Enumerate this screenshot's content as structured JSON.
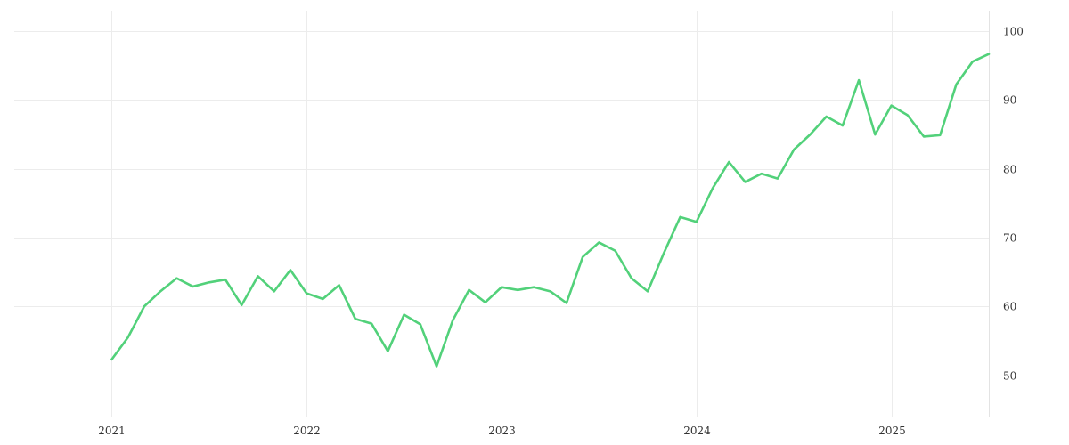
{
  "chart_data": {
    "type": "line",
    "title": "",
    "xlabel": "",
    "ylabel": "",
    "grid": true,
    "y_axis_side": "right",
    "xlim": [
      "2020-07",
      "2025-07"
    ],
    "ylim": [
      44,
      103
    ],
    "x_ticks": [
      "2021",
      "2022",
      "2023",
      "2024",
      "2025"
    ],
    "y_ticks": [
      50,
      60,
      70,
      80,
      90,
      100
    ],
    "series": [
      {
        "color": "#52d17a",
        "x": [
          "2021-01",
          "2021-02",
          "2021-03",
          "2021-04",
          "2021-05",
          "2021-06",
          "2021-07",
          "2021-08",
          "2021-09",
          "2021-10",
          "2021-11",
          "2021-12",
          "2022-01",
          "2022-02",
          "2022-03",
          "2022-04",
          "2022-05",
          "2022-06",
          "2022-07",
          "2022-08",
          "2022-09",
          "2022-10",
          "2022-11",
          "2022-12",
          "2023-01",
          "2023-02",
          "2023-03",
          "2023-04",
          "2023-05",
          "2023-06",
          "2023-07",
          "2023-08",
          "2023-09",
          "2023-10",
          "2023-11",
          "2023-12",
          "2024-01",
          "2024-02",
          "2024-03",
          "2024-04",
          "2024-05",
          "2024-06",
          "2024-07",
          "2024-08",
          "2024-09",
          "2024-10",
          "2024-11",
          "2024-12",
          "2025-01",
          "2025-02",
          "2025-03",
          "2025-04",
          "2025-05",
          "2025-06",
          "2025-07"
        ],
        "values": [
          52.3,
          55.5,
          60.0,
          62.2,
          64.1,
          62.9,
          63.5,
          63.9,
          60.2,
          64.4,
          62.2,
          65.3,
          61.9,
          61.1,
          63.1,
          58.2,
          57.5,
          53.5,
          58.8,
          57.4,
          51.3,
          58.0,
          62.4,
          60.6,
          62.8,
          62.4,
          62.8,
          62.2,
          60.5,
          67.2,
          69.3,
          68.1,
          64.1,
          62.2,
          67.8,
          73.0,
          72.3,
          77.2,
          81.0,
          78.1,
          79.3,
          78.6,
          82.8,
          85.0,
          87.6,
          86.3,
          92.9,
          85.0,
          89.2,
          87.8,
          84.7,
          84.9,
          92.3,
          95.6,
          96.7
        ]
      }
    ]
  }
}
